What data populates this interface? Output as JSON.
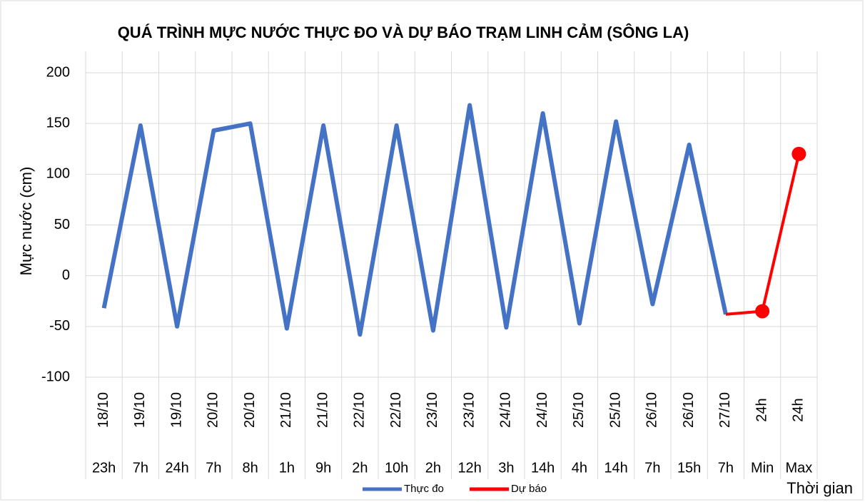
{
  "chart_data": {
    "type": "line",
    "title": "QUÁ TRÌNH MỰC NƯỚC THỰC ĐO VÀ DỰ BÁO TRẠM LINH CẢM (SÔNG LA)",
    "ylabel": "Mực nước (cm)",
    "xlabel": "Thời gian",
    "category_top": [
      "18/10",
      "19/10",
      "19/10",
      "20/10",
      "20/10",
      "21/10",
      "21/10",
      "22/10",
      "22/10",
      "23/10",
      "23/10",
      "24/10",
      "24/10",
      "25/10",
      "25/10",
      "26/10",
      "26/10",
      "27/10",
      "24h",
      "24h"
    ],
    "categories": [
      "23h",
      "7h",
      "24h",
      "7h",
      "8h",
      "1h",
      "9h",
      "2h",
      "10h",
      "2h",
      "12h",
      "3h",
      "14h",
      "4h",
      "14h",
      "7h",
      "15h",
      "7h",
      "Min",
      "Max"
    ],
    "series": [
      {
        "name": "Thực đo",
        "color": "#4472c4",
        "values": [
          -32,
          148,
          -50,
          143,
          150,
          -52,
          148,
          -58,
          148,
          -54,
          168,
          -51,
          160,
          -47,
          152,
          -28,
          129,
          -38,
          null,
          null
        ]
      },
      {
        "name": "Dự báo",
        "color": "#ff0000",
        "values": [
          null,
          null,
          null,
          null,
          null,
          null,
          null,
          null,
          null,
          null,
          null,
          null,
          null,
          null,
          null,
          null,
          null,
          -38,
          -35,
          120
        ]
      }
    ],
    "ylim": [
      -100,
      200
    ],
    "yticks": [
      -100,
      -50,
      0,
      50,
      100,
      150,
      200
    ],
    "grid": true
  }
}
